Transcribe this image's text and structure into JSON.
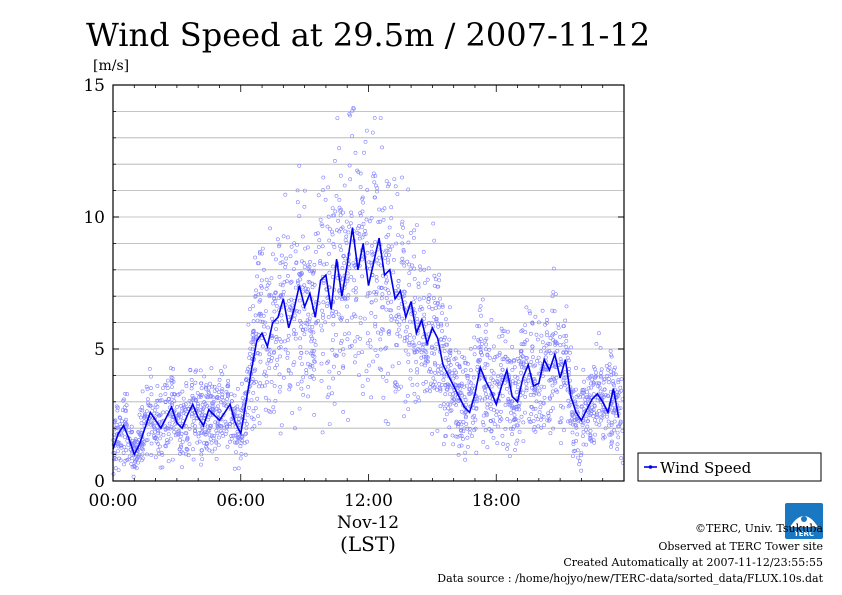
{
  "chart_data": {
    "type": "scatter",
    "title": "Wind Speed at 29.5m / 2007-11-12",
    "ylabel": "[m/s]",
    "xlabel": "(LST)",
    "x_date_label": "Nov-12",
    "xlim": [
      0,
      24
    ],
    "ylim": [
      0,
      15
    ],
    "y_ticks": [
      0,
      5,
      10,
      15
    ],
    "y_gridlines": [
      1,
      2,
      3,
      4,
      5,
      6,
      7,
      8,
      9,
      10,
      11,
      12,
      13,
      14
    ],
    "x_ticks": [
      {
        "hour": 0,
        "label": "00:00"
      },
      {
        "hour": 6,
        "label": "06:00"
      },
      {
        "hour": 12,
        "label": "12:00"
      },
      {
        "hour": 18,
        "label": "18:00"
      }
    ],
    "grid": true,
    "legend_position": "right-bottom",
    "series": [
      {
        "name": "Wind Speed",
        "style": "line with scattered 10 s samples",
        "color": "#0000ee",
        "scatter_color": "#8080ff",
        "x": [
          0.0,
          0.25,
          0.5,
          0.75,
          1.0,
          1.25,
          1.5,
          1.75,
          2.0,
          2.25,
          2.5,
          2.75,
          3.0,
          3.25,
          3.5,
          3.75,
          4.0,
          4.25,
          4.5,
          4.75,
          5.0,
          5.25,
          5.5,
          5.75,
          6.0,
          6.25,
          6.5,
          6.75,
          7.0,
          7.25,
          7.5,
          7.75,
          8.0,
          8.25,
          8.5,
          8.75,
          9.0,
          9.25,
          9.5,
          9.75,
          10.0,
          10.25,
          10.5,
          10.75,
          11.0,
          11.25,
          11.5,
          11.75,
          12.0,
          12.25,
          12.5,
          12.75,
          13.0,
          13.25,
          13.5,
          13.75,
          14.0,
          14.25,
          14.5,
          14.75,
          15.0,
          15.25,
          15.5,
          15.75,
          16.0,
          16.25,
          16.5,
          16.75,
          17.0,
          17.25,
          17.5,
          17.75,
          18.0,
          18.25,
          18.5,
          18.75,
          19.0,
          19.25,
          19.5,
          19.75,
          20.0,
          20.25,
          20.5,
          20.75,
          21.0,
          21.25,
          21.5,
          21.75,
          22.0,
          22.25,
          22.5,
          22.75,
          23.0,
          23.25,
          23.5,
          23.75
        ],
        "y": [
          1.2,
          1.8,
          2.1,
          1.6,
          1.0,
          1.4,
          2.0,
          2.6,
          2.3,
          2.0,
          2.4,
          2.8,
          2.2,
          2.0,
          2.5,
          2.9,
          2.4,
          2.1,
          2.7,
          2.5,
          2.3,
          2.6,
          2.9,
          2.2,
          1.8,
          3.0,
          4.2,
          5.3,
          5.6,
          5.1,
          6.0,
          6.2,
          6.9,
          5.8,
          6.5,
          7.4,
          6.6,
          7.1,
          6.2,
          7.6,
          7.8,
          6.5,
          8.4,
          7.0,
          8.2,
          9.6,
          8.0,
          9.0,
          7.4,
          8.3,
          9.2,
          7.8,
          8.0,
          6.9,
          7.2,
          6.2,
          6.8,
          5.6,
          6.1,
          5.2,
          5.8,
          5.4,
          4.4,
          4.0,
          3.6,
          3.2,
          2.8,
          2.6,
          3.3,
          4.3,
          3.8,
          3.4,
          2.9,
          3.6,
          4.2,
          3.2,
          3.0,
          3.9,
          4.4,
          3.6,
          3.7,
          4.6,
          4.2,
          4.8,
          3.9,
          4.6,
          3.2,
          2.6,
          2.3,
          2.7,
          3.1,
          3.3,
          3.0,
          2.6,
          3.5,
          2.4
        ]
      }
    ]
  },
  "legend_label": "Wind Speed",
  "logo_text": "TERC",
  "credits": [
    "©TERC, Univ. Tsukuba",
    "Observed at TERC Tower site",
    "Created Automatically at 2007-11-12/23:55:55",
    "Data source : /home/hojyo/new/TERC-data/sorted_data/FLUX.10s.dat"
  ]
}
